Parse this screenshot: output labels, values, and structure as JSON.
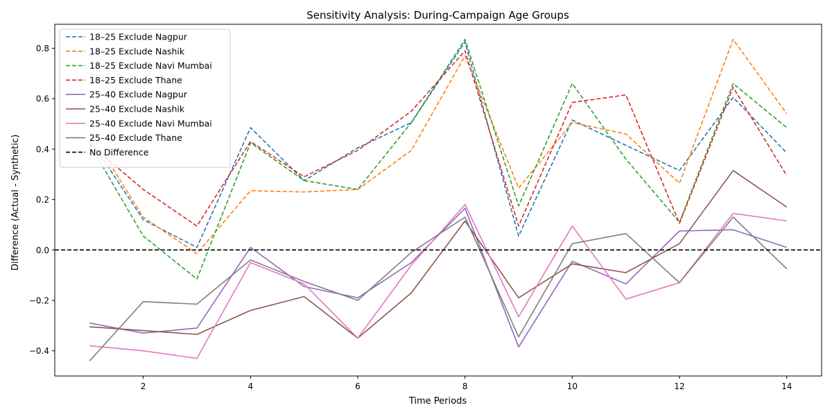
{
  "chart_data": {
    "type": "line",
    "title": "Sensitivity Analysis: During-Campaign Age Groups",
    "xlabel": "Time Periods",
    "ylabel": "Difference (Actual - Synthetic)",
    "xlim": [
      0.35,
      14.65
    ],
    "ylim": [
      -0.5,
      0.895
    ],
    "xticks": [
      2,
      4,
      6,
      8,
      10,
      12,
      14
    ],
    "xtick_labels": [
      "2",
      "4",
      "6",
      "8",
      "10",
      "12",
      "14"
    ],
    "yticks": [
      -0.4,
      -0.2,
      0.0,
      0.2,
      0.4,
      0.6,
      0.8
    ],
    "ytick_labels": [
      "−0.4",
      "−0.2",
      "0.0",
      "0.2",
      "0.4",
      "0.6",
      "0.8"
    ],
    "grid": false,
    "legend_position": "upper left",
    "x": [
      1,
      2,
      3,
      4,
      5,
      6,
      7,
      8,
      9,
      10,
      11,
      12,
      13,
      14
    ],
    "series": [
      {
        "name": "18–25 Exclude Nagpur",
        "color": "#1f77b4",
        "dashed": true,
        "values": [
          0.44,
          0.12,
          0.01,
          0.485,
          0.275,
          0.405,
          0.505,
          0.825,
          0.055,
          0.515,
          0.415,
          0.315,
          0.605,
          0.385
        ]
      },
      {
        "name": "18–25 Exclude Nashik",
        "color": "#ff7f0e",
        "dashed": true,
        "values": [
          0.47,
          0.13,
          -0.015,
          0.235,
          0.23,
          0.24,
          0.395,
          0.77,
          0.245,
          0.505,
          0.46,
          0.265,
          0.835,
          0.54
        ]
      },
      {
        "name": "18–25 Exclude Navi Mumbai",
        "color": "#2ca02c",
        "dashed": true,
        "values": [
          0.42,
          0.055,
          -0.115,
          0.425,
          0.275,
          0.24,
          0.505,
          0.835,
          0.175,
          0.66,
          0.36,
          0.11,
          0.66,
          0.485
        ]
      },
      {
        "name": "18–25 Exclude Thane",
        "color": "#d62728",
        "dashed": true,
        "values": [
          0.42,
          0.24,
          0.095,
          0.43,
          0.29,
          0.395,
          0.55,
          0.79,
          0.095,
          0.585,
          0.615,
          0.105,
          0.645,
          0.295
        ]
      },
      {
        "name": "25–40 Exclude Nagpur",
        "color": "#9467bd",
        "dashed": false,
        "values": [
          -0.29,
          -0.33,
          -0.31,
          0.01,
          -0.145,
          -0.19,
          -0.05,
          0.165,
          -0.385,
          -0.045,
          -0.135,
          0.075,
          0.08,
          0.01
        ]
      },
      {
        "name": "25–40 Exclude Nashik",
        "color": "#8c564b",
        "dashed": false,
        "values": [
          -0.305,
          -0.32,
          -0.335,
          -0.24,
          -0.185,
          -0.35,
          -0.17,
          0.115,
          -0.19,
          -0.055,
          -0.09,
          0.025,
          0.315,
          0.17
        ]
      },
      {
        "name": "25–40 Exclude Navi Mumbai",
        "color": "#e377c2",
        "dashed": false,
        "values": [
          -0.38,
          -0.4,
          -0.43,
          -0.05,
          -0.135,
          -0.35,
          -0.06,
          0.18,
          -0.265,
          0.095,
          -0.195,
          -0.13,
          0.145,
          0.115
        ]
      },
      {
        "name": "25–40 Exclude Thane",
        "color": "#7f7f7f",
        "dashed": false,
        "values": [
          -0.44,
          -0.205,
          -0.215,
          -0.04,
          -0.125,
          -0.2,
          -0.01,
          0.13,
          -0.345,
          0.025,
          0.065,
          -0.13,
          0.13,
          -0.075
        ]
      }
    ],
    "reference_line": {
      "name": "No Difference",
      "y": 0.0,
      "color": "#000000",
      "dashed": true
    }
  }
}
